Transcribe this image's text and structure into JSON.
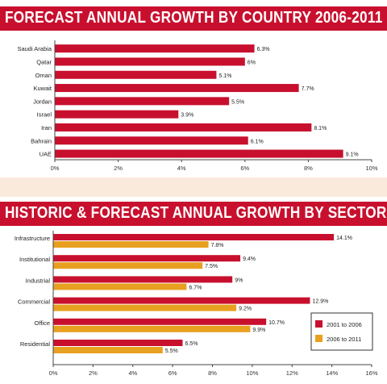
{
  "colors": {
    "banner": "#c8102e",
    "bar_primary": "#c8102e",
    "bar_secondary": "#e8a020",
    "axis": "#444444",
    "band": "#faeadc"
  },
  "charts": [
    {
      "title": "FORECAST ANNUAL GROWTH BY COUNTRY 2006-2011"
    },
    {
      "title": "HISTORIC & FORECAST ANNUAL GROWTH BY SECTOR"
    }
  ],
  "chart_data": [
    {
      "type": "bar",
      "orientation": "horizontal",
      "title": "FORECAST ANNUAL GROWTH BY COUNTRY 2006-2011",
      "categories": [
        "Saudi Arabia",
        "Qatar",
        "Oman",
        "Kuwait",
        "Jordan",
        "Israel",
        "Iran",
        "Bahrain",
        "UAE"
      ],
      "values": [
        6.3,
        6,
        5.1,
        7.7,
        5.5,
        3.9,
        8.1,
        6.1,
        9.1
      ],
      "value_labels": [
        "6.3%",
        "6%",
        "5.1%",
        "7.7%",
        "5.5%",
        "3.9%",
        "8.1%",
        "6.1%",
        "9.1%"
      ],
      "xlim": [
        0,
        10
      ],
      "xticks": [
        0,
        2,
        4,
        6,
        8,
        10
      ],
      "xtick_labels": [
        "0%",
        "2%",
        "4%",
        "6%",
        "8%",
        "10%"
      ],
      "grid": false
    },
    {
      "type": "bar",
      "orientation": "horizontal",
      "title": "HISTORIC & FORECAST ANNUAL GROWTH BY SECTOR",
      "categories": [
        "Infrastructure",
        "Institutional",
        "Industrial",
        "Commercial",
        "Office",
        "Residential"
      ],
      "series": [
        {
          "name": "2001 to 2006",
          "values": [
            14.1,
            9.4,
            9,
            12.9,
            10.7,
            6.5
          ],
          "value_labels": [
            "14.1%",
            "9.4%",
            "9%",
            "12.9%",
            "10.7%",
            "6.5%"
          ]
        },
        {
          "name": "2006 to 2011",
          "values": [
            7.8,
            7.5,
            6.7,
            9.2,
            9.9,
            5.5
          ],
          "value_labels": [
            "7.8%",
            "7.5%",
            "6.7%",
            "9.2%",
            "9.9%",
            "5.5%"
          ]
        }
      ],
      "xlim": [
        0,
        16
      ],
      "xticks": [
        0,
        2,
        4,
        6,
        8,
        10,
        12,
        14,
        16
      ],
      "xtick_labels": [
        "0%",
        "2%",
        "4%",
        "6%",
        "8%",
        "10%",
        "12%",
        "14%",
        "16%"
      ],
      "legend": "right",
      "grid": false
    }
  ]
}
